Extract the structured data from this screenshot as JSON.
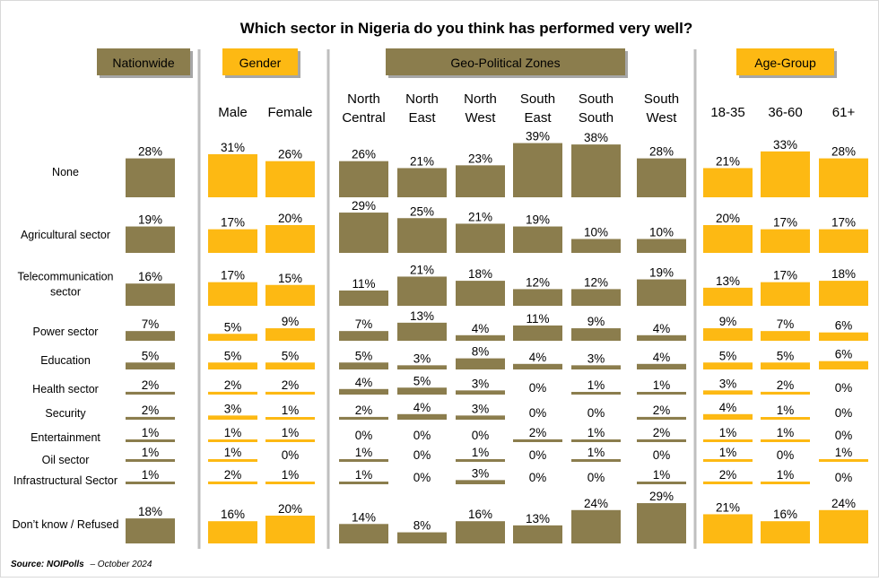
{
  "title": "Which sector in Nigeria do you think has performed very well?",
  "source": {
    "label": "Source: NOIPolls",
    "date": "– October 2024"
  },
  "colors": {
    "nationwide": "#8B7D4D",
    "gender": "#FDB913",
    "geo": "#8B7D4D",
    "age": "#FDB913",
    "header_olive": "#8B7D4D",
    "header_gold": "#FDB913",
    "divider": "#BFBFBF"
  },
  "groups": [
    {
      "label": "Nationwide",
      "color": "#8B7D4D"
    },
    {
      "label": "Gender",
      "color": "#FDB913"
    },
    {
      "label": "Geo-Political Zones",
      "color": "#8B7D4D"
    },
    {
      "label": "Age-Group",
      "color": "#FDB913"
    }
  ],
  "chart_data": {
    "type": "bar",
    "title": "Which sector in Nigeria do you think has performed very well?",
    "categories": [
      "None",
      "Agricultural sector",
      "Telecommunication sector",
      "Power sector",
      "Education",
      "Health sector",
      "Security",
      "Entertainment",
      "Oil sector",
      "Infrastructural Sector",
      "Don’t know / Refused"
    ],
    "category_lines": [
      [
        "None"
      ],
      [
        "Agricultural sector"
      ],
      [
        "Telecommunication",
        "sector"
      ],
      [
        "Power sector"
      ],
      [
        "Education"
      ],
      [
        "Health sector"
      ],
      [
        "Security"
      ],
      [
        "Entertainment"
      ],
      [
        "Oil sector"
      ],
      [
        "Infrastructural Sector"
      ],
      [
        "Don’t know / Refused"
      ]
    ],
    "series": [
      {
        "name": "Nationwide",
        "group": "Nationwide",
        "header_lines": [],
        "values": [
          28,
          19,
          16,
          7,
          5,
          2,
          2,
          1,
          1,
          1,
          18
        ]
      },
      {
        "name": "Male",
        "group": "Gender",
        "header_lines": [
          "Male"
        ],
        "values": [
          31,
          17,
          17,
          5,
          5,
          2,
          3,
          1,
          1,
          2,
          16
        ]
      },
      {
        "name": "Female",
        "group": "Gender",
        "header_lines": [
          "Female"
        ],
        "values": [
          26,
          20,
          15,
          9,
          5,
          2,
          1,
          1,
          0,
          1,
          20
        ]
      },
      {
        "name": "North Central",
        "group": "Geo-Political Zones",
        "header_lines": [
          "North",
          "Central"
        ],
        "values": [
          26,
          29,
          11,
          7,
          5,
          4,
          2,
          0,
          1,
          1,
          14
        ]
      },
      {
        "name": "North East",
        "group": "Geo-Political Zones",
        "header_lines": [
          "North",
          "East"
        ],
        "values": [
          21,
          25,
          21,
          13,
          3,
          5,
          4,
          0,
          0,
          0,
          8
        ]
      },
      {
        "name": "North West",
        "group": "Geo-Political Zones",
        "header_lines": [
          "North",
          "West"
        ],
        "values": [
          23,
          21,
          18,
          4,
          8,
          3,
          3,
          0,
          1,
          3,
          16
        ]
      },
      {
        "name": "South East",
        "group": "Geo-Political Zones",
        "header_lines": [
          "South",
          "East"
        ],
        "values": [
          39,
          19,
          12,
          11,
          4,
          0,
          0,
          2,
          0,
          0,
          13
        ]
      },
      {
        "name": "South South",
        "group": "Geo-Political Zones",
        "header_lines": [
          "South",
          "South"
        ],
        "values": [
          38,
          10,
          12,
          9,
          3,
          1,
          0,
          1,
          1,
          0,
          24
        ]
      },
      {
        "name": "South West",
        "group": "Geo-Political Zones",
        "header_lines": [
          "South",
          "West"
        ],
        "values": [
          28,
          10,
          19,
          4,
          4,
          1,
          2,
          2,
          0,
          1,
          29
        ]
      },
      {
        "name": "18-35",
        "group": "Age-Group",
        "header_lines": [
          "18-35"
        ],
        "values": [
          21,
          20,
          13,
          9,
          5,
          3,
          4,
          1,
          1,
          2,
          21
        ]
      },
      {
        "name": "36-60",
        "group": "Age-Group",
        "header_lines": [
          "36-60"
        ],
        "values": [
          33,
          17,
          17,
          7,
          5,
          2,
          1,
          1,
          0,
          1,
          16
        ]
      },
      {
        "name": "61+",
        "group": "Age-Group",
        "header_lines": [
          "61+"
        ],
        "values": [
          28,
          17,
          18,
          6,
          6,
          0,
          0,
          0,
          1,
          0,
          24
        ]
      }
    ],
    "value_suffix": "%",
    "grid": false
  }
}
